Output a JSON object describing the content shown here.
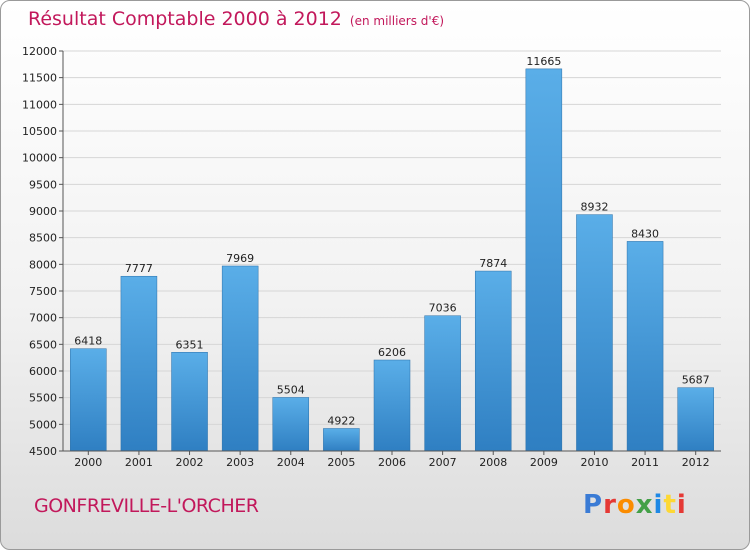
{
  "title": "Résultat Comptable 2000 à 2012",
  "subtitle": "(en milliers d'€)",
  "city": "GONFREVILLE-L'ORCHER",
  "logo": {
    "letters": [
      "P",
      "r",
      "o",
      "x",
      "i",
      "t",
      "i"
    ],
    "colors": [
      "#3a7bd5",
      "#e53935",
      "#fb8c00",
      "#43a047",
      "#1e88e5",
      "#fdd835",
      "#e53935"
    ]
  },
  "colors": {
    "accent": "#c2185b",
    "bar_top": "#5aaee8",
    "bar_bottom": "#2f7fc2",
    "grid": "#d6d6d6"
  },
  "chart_data": {
    "type": "bar",
    "title": "Résultat Comptable 2000 à 2012",
    "subtitle": "(en milliers d'€)",
    "categories": [
      "2000",
      "2001",
      "2002",
      "2003",
      "2004",
      "2005",
      "2006",
      "2007",
      "2008",
      "2009",
      "2010",
      "2011",
      "2012"
    ],
    "values": [
      6418,
      7777,
      6351,
      7969,
      5504,
      4922,
      6206,
      7036,
      7874,
      11665,
      8932,
      8430,
      5687
    ],
    "ylim": [
      4500,
      12000
    ],
    "yticks": [
      4500,
      5000,
      5500,
      6000,
      6500,
      7000,
      7500,
      8000,
      8500,
      9000,
      9500,
      10000,
      10500,
      11000,
      11500,
      12000
    ],
    "grid": true,
    "xlabel": "",
    "ylabel": ""
  }
}
